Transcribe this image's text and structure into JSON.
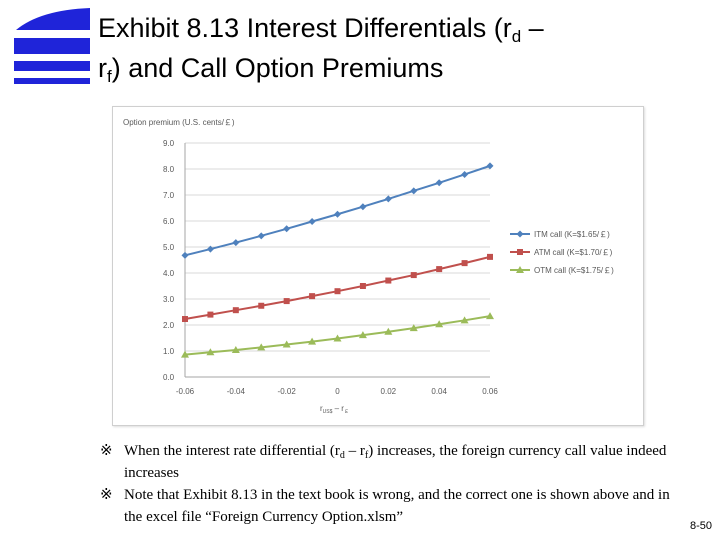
{
  "title": {
    "line1_main": "Exhibit 8.13 Interest Differentials (r",
    "line1_sub": "d",
    "line1_tail": " –",
    "line2_main": "r",
    "line2_sub": "f",
    "line2_tail": ") and Call Option Premiums"
  },
  "colors": {
    "logo": "#1f24d9",
    "itm": "#4f81bd",
    "atm": "#c0504d",
    "otm": "#9bbb59",
    "grid": "#d9d9d9"
  },
  "chart_data": {
    "type": "line",
    "ylabel": "Option premium (U.S. cents/￡)",
    "xlabel": "r",
    "xlabel_sub1": "US$",
    "xlabel_mid": " – r",
    "xlabel_sub2": "￡",
    "x": [
      -0.06,
      -0.05,
      -0.04,
      -0.03,
      -0.02,
      -0.01,
      0,
      0.01,
      0.02,
      0.03,
      0.04,
      0.05,
      0.06
    ],
    "xticks": [
      -0.06,
      -0.04,
      -0.02,
      0,
      0.02,
      0.04,
      0.06
    ],
    "xtick_labels": [
      "-0.06",
      "-0.04",
      "-0.02",
      "0",
      "0.02",
      "0.04",
      "0.06"
    ],
    "yticks": [
      0,
      1,
      2,
      3,
      4,
      5,
      6,
      7,
      8,
      9
    ],
    "ytick_labels": [
      "0.0",
      "1.0",
      "2.0",
      "3.0",
      "4.0",
      "5.0",
      "6.0",
      "7.0",
      "8.0",
      "9.0"
    ],
    "xlim": [
      -0.06,
      0.06
    ],
    "ylim": [
      0,
      9
    ],
    "grid": true,
    "legend_position": "right",
    "series": [
      {
        "name": "ITM call (K=$1.65/￡)",
        "color": "#4f81bd",
        "marker": "diamond",
        "values": [
          4.68,
          4.92,
          5.17,
          5.43,
          5.7,
          5.98,
          6.26,
          6.55,
          6.85,
          7.16,
          7.47,
          7.79,
          8.12
        ]
      },
      {
        "name": "ATM call (K=$1.70/￡)",
        "color": "#c0504d",
        "marker": "square",
        "values": [
          2.23,
          2.4,
          2.57,
          2.74,
          2.92,
          3.11,
          3.3,
          3.5,
          3.71,
          3.92,
          4.15,
          4.38,
          4.62
        ]
      },
      {
        "name": "OTM call (K=$1.75/￡)",
        "color": "#9bbb59",
        "marker": "triangle",
        "values": [
          0.86,
          0.95,
          1.04,
          1.14,
          1.25,
          1.36,
          1.48,
          1.61,
          1.74,
          1.88,
          2.03,
          2.18,
          2.34
        ]
      }
    ]
  },
  "notes": [
    {
      "mark": "※",
      "pre": "When the interest rate differential (r",
      "sub1": "d",
      "mid": " – r",
      "sub2": "f",
      "post": ") increases, the foreign currency call value indeed increases"
    },
    {
      "mark": "※",
      "text": "Note that Exhibit 8.13 in the text book is wrong, and the correct one is shown above and in the excel file “Foreign Currency Option.xlsm”"
    }
  ],
  "page_number": "8-50"
}
